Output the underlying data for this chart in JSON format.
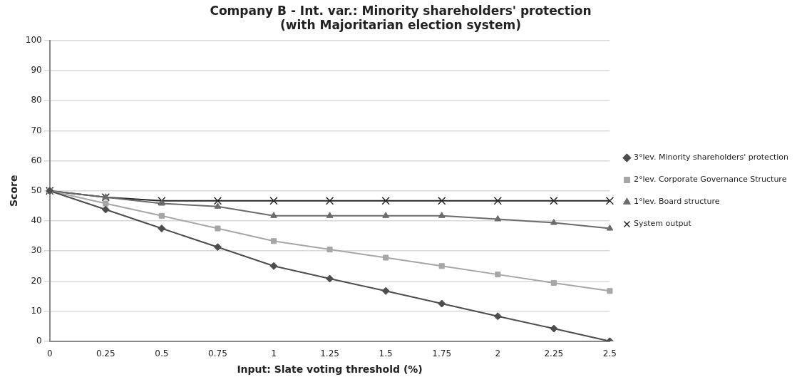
{
  "chart_data": {
    "type": "line",
    "title": "Company B - Int. var.: Minority shareholders' protection\n(with Majoritarian election system)",
    "xlabel": "Input: Slate voting threshold (%)",
    "ylabel": "Score",
    "categories": [
      "0",
      "0.25",
      "0.5",
      "0.75",
      "1",
      "1.25",
      "1.5",
      "1.75",
      "2",
      "2.25",
      "2.5"
    ],
    "series": [
      {
        "name": "3°lev. Minority shareholders' protection",
        "color": "#4d4d4d",
        "marker": "diamond",
        "values": [
          50,
          43.8,
          37.5,
          31.3,
          25,
          20.8,
          16.7,
          12.5,
          8.3,
          4.2,
          0
        ]
      },
      {
        "name": "2°lev. Corporate Governance Structure",
        "color": "#a6a6a6",
        "marker": "square",
        "values": [
          50,
          45.8,
          41.7,
          37.5,
          33.3,
          30.5,
          27.8,
          25,
          22.2,
          19.4,
          16.7
        ]
      },
      {
        "name": "1°lev. Board structure",
        "color": "#6b6b6b",
        "marker": "triangle",
        "values": [
          50,
          47.9,
          45.8,
          44.8,
          41.7,
          41.7,
          41.7,
          41.7,
          40.6,
          39.4,
          37.5
        ]
      },
      {
        "name": "System output",
        "color": "#262626",
        "marker": "cross",
        "values": [
          50,
          47.9,
          46.7,
          46.7,
          46.7,
          46.7,
          46.7,
          46.7,
          46.7,
          46.7,
          46.7
        ]
      }
    ],
    "ylim": [
      0,
      100
    ],
    "yticks": [
      0,
      10,
      20,
      30,
      40,
      50,
      60,
      70,
      80,
      90,
      100
    ],
    "grid": "y",
    "legend": "right"
  }
}
